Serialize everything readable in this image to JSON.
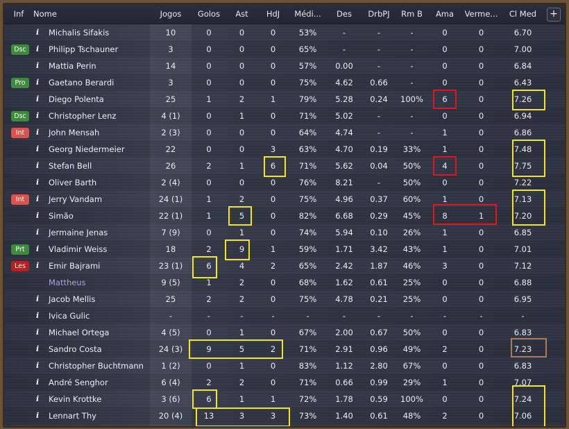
{
  "columns": [
    {
      "key": "inf",
      "label": "Inf"
    },
    {
      "key": "nome",
      "label": "Nome"
    },
    {
      "key": "jogos",
      "label": "Jogos"
    },
    {
      "key": "golos",
      "label": "Golos"
    },
    {
      "key": "ast",
      "label": "Ast"
    },
    {
      "key": "hdj",
      "label": "HdJ"
    },
    {
      "key": "media",
      "label": "Médi..."
    },
    {
      "key": "des",
      "label": "Des"
    },
    {
      "key": "drbpj",
      "label": "DrbPJ"
    },
    {
      "key": "rmb",
      "label": "Rm B"
    },
    {
      "key": "ama",
      "label": "Ama"
    },
    {
      "key": "verm",
      "label": "Verme..."
    },
    {
      "key": "clmed",
      "label": "Cl Med"
    }
  ],
  "add_column_label": "+",
  "badge_colors": {
    "Dsc": "#3f8a3f",
    "Pro": "#3f8a3f",
    "Prt": "#3f8a3f",
    "Int": "#d9534f",
    "Les": "#b3231f"
  },
  "players": [
    {
      "badge": "",
      "info": "i",
      "name": "Michalis Sifakis",
      "jogos": "10",
      "golos": "0",
      "ast": "0",
      "hdj": "0",
      "media": "53%",
      "des": "-",
      "drbpj": "-",
      "rmb": "-",
      "ama": "0",
      "verm": "0",
      "clmed": "6.70"
    },
    {
      "badge": "Dsc",
      "info": "i",
      "name": "Philipp Tschauner",
      "jogos": "3",
      "golos": "0",
      "ast": "0",
      "hdj": "0",
      "media": "65%",
      "des": "-",
      "drbpj": "-",
      "rmb": "-",
      "ama": "0",
      "verm": "0",
      "clmed": "7.00"
    },
    {
      "badge": "",
      "info": "i",
      "name": "Mattia Perin",
      "jogos": "14",
      "golos": "0",
      "ast": "0",
      "hdj": "0",
      "media": "57%",
      "des": "0.00",
      "drbpj": "-",
      "rmb": "-",
      "ama": "0",
      "verm": "0",
      "clmed": "6.84"
    },
    {
      "badge": "Pro",
      "info": "i",
      "name": "Gaetano Berardi",
      "jogos": "3",
      "golos": "0",
      "ast": "0",
      "hdj": "0",
      "media": "75%",
      "des": "4.62",
      "drbpj": "0.66",
      "rmb": "-",
      "ama": "0",
      "verm": "0",
      "clmed": "6.43"
    },
    {
      "badge": "",
      "info": "i",
      "name": "Diego Polenta",
      "jogos": "25",
      "golos": "1",
      "ast": "2",
      "hdj": "1",
      "media": "79%",
      "des": "5.28",
      "drbpj": "0.24",
      "rmb": "100%",
      "ama": "6",
      "verm": "0",
      "clmed": "7.26"
    },
    {
      "badge": "Dsc",
      "info": "i",
      "name": "Christopher Lenz",
      "jogos": "4 (1)",
      "golos": "0",
      "ast": "1",
      "hdj": "0",
      "media": "71%",
      "des": "5.02",
      "drbpj": "-",
      "rmb": "-",
      "ama": "0",
      "verm": "0",
      "clmed": "6.94"
    },
    {
      "badge": "Int",
      "info": "i",
      "name": "John Mensah",
      "jogos": "2 (3)",
      "golos": "0",
      "ast": "0",
      "hdj": "0",
      "media": "64%",
      "des": "4.74",
      "drbpj": "-",
      "rmb": "-",
      "ama": "1",
      "verm": "0",
      "clmed": "6.86"
    },
    {
      "badge": "",
      "info": "i",
      "name": "Georg Niedermeier",
      "jogos": "22",
      "golos": "0",
      "ast": "0",
      "hdj": "3",
      "media": "63%",
      "des": "4.70",
      "drbpj": "0.19",
      "rmb": "33%",
      "ama": "1",
      "verm": "0",
      "clmed": "7.48"
    },
    {
      "badge": "",
      "info": "i",
      "name": "Stefan Bell",
      "jogos": "26",
      "golos": "2",
      "ast": "1",
      "hdj": "6",
      "media": "71%",
      "des": "5.62",
      "drbpj": "0.04",
      "rmb": "50%",
      "ama": "4",
      "verm": "0",
      "clmed": "7.75"
    },
    {
      "badge": "",
      "info": "i",
      "name": "Oliver Barth",
      "jogos": "2 (4)",
      "golos": "0",
      "ast": "0",
      "hdj": "0",
      "media": "76%",
      "des": "8.21",
      "drbpj": "-",
      "rmb": "50%",
      "ama": "0",
      "verm": "0",
      "clmed": "7.22"
    },
    {
      "badge": "Int",
      "info": "i",
      "name": "Jerry Vandam",
      "jogos": "24 (1)",
      "golos": "1",
      "ast": "2",
      "hdj": "0",
      "media": "75%",
      "des": "4.96",
      "drbpj": "0.37",
      "rmb": "60%",
      "ama": "1",
      "verm": "0",
      "clmed": "7.13"
    },
    {
      "badge": "",
      "info": "i",
      "name": "Simão",
      "jogos": "22 (1)",
      "golos": "1",
      "ast": "5",
      "hdj": "0",
      "media": "82%",
      "des": "6.68",
      "drbpj": "0.29",
      "rmb": "45%",
      "ama": "8",
      "verm": "1",
      "clmed": "7.20"
    },
    {
      "badge": "",
      "info": "i",
      "name": "Jermaine Jenas",
      "jogos": "7 (9)",
      "golos": "0",
      "ast": "1",
      "hdj": "0",
      "media": "74%",
      "des": "5.94",
      "drbpj": "0.10",
      "rmb": "26%",
      "ama": "1",
      "verm": "0",
      "clmed": "6.85"
    },
    {
      "badge": "Prt",
      "info": "i",
      "name": "Vladimir Weiss",
      "jogos": "18",
      "golos": "2",
      "ast": "9",
      "hdj": "1",
      "media": "59%",
      "des": "1.71",
      "drbpj": "3.42",
      "rmb": "43%",
      "ama": "1",
      "verm": "0",
      "clmed": "7.01"
    },
    {
      "badge": "Les",
      "info": "i",
      "name": "Emir Bajrami",
      "jogos": "23 (1)",
      "golos": "6",
      "ast": "4",
      "hdj": "2",
      "media": "65%",
      "des": "2.42",
      "drbpj": "1.87",
      "rmb": "46%",
      "ama": "3",
      "verm": "0",
      "clmed": "7.12"
    },
    {
      "badge": "",
      "info": "",
      "name": "Mattheus",
      "link": true,
      "jogos": "9 (5)",
      "golos": "1",
      "ast": "2",
      "hdj": "0",
      "media": "68%",
      "des": "1.62",
      "drbpj": "0.61",
      "rmb": "25%",
      "ama": "0",
      "verm": "0",
      "clmed": "6.88"
    },
    {
      "badge": "",
      "info": "i",
      "name": "Jacob Mellis",
      "jogos": "25",
      "golos": "2",
      "ast": "2",
      "hdj": "0",
      "media": "75%",
      "des": "4.78",
      "drbpj": "0.21",
      "rmb": "25%",
      "ama": "0",
      "verm": "0",
      "clmed": "6.95"
    },
    {
      "badge": "",
      "info": "i",
      "name": "Ivica Gulic",
      "jogos": "-",
      "golos": "-",
      "ast": "-",
      "hdj": "-",
      "media": "-",
      "des": "-",
      "drbpj": "-",
      "rmb": "-",
      "ama": "-",
      "verm": "-",
      "clmed": "-"
    },
    {
      "badge": "",
      "info": "i",
      "name": "Michael Ortega",
      "jogos": "4 (5)",
      "golos": "0",
      "ast": "1",
      "hdj": "0",
      "media": "67%",
      "des": "2.00",
      "drbpj": "0.67",
      "rmb": "50%",
      "ama": "0",
      "verm": "0",
      "clmed": "6.83"
    },
    {
      "badge": "",
      "info": "i",
      "name": "Sandro Costa",
      "jogos": "24 (3)",
      "golos": "9",
      "ast": "5",
      "hdj": "2",
      "media": "71%",
      "des": "2.91",
      "drbpj": "0.96",
      "rmb": "49%",
      "ama": "2",
      "verm": "0",
      "clmed": "7.23"
    },
    {
      "badge": "",
      "info": "i",
      "name": "Christopher Buchtmann",
      "jogos": "1 (2)",
      "golos": "0",
      "ast": "1",
      "hdj": "0",
      "media": "83%",
      "des": "1.12",
      "drbpj": "2.80",
      "rmb": "67%",
      "ama": "0",
      "verm": "0",
      "clmed": "6.83"
    },
    {
      "badge": "",
      "info": "i",
      "name": "André Senghor",
      "jogos": "6 (4)",
      "golos": "2",
      "ast": "2",
      "hdj": "0",
      "media": "71%",
      "des": "0.66",
      "drbpj": "0.99",
      "rmb": "29%",
      "ama": "1",
      "verm": "0",
      "clmed": "7.07"
    },
    {
      "badge": "",
      "info": "i",
      "name": "Kevin Krottke",
      "jogos": "3 (6)",
      "golos": "6",
      "ast": "1",
      "hdj": "1",
      "media": "72%",
      "des": "1.78",
      "drbpj": "0.59",
      "rmb": "100%",
      "ama": "0",
      "verm": "0",
      "clmed": "7.24"
    },
    {
      "badge": "",
      "info": "i",
      "name": "Lennart Thy",
      "jogos": "20 (4)",
      "golos": "13",
      "ast": "3",
      "hdj": "3",
      "media": "73%",
      "des": "1.40",
      "drbpj": "0.61",
      "rmb": "48%",
      "ama": "2",
      "verm": "0",
      "clmed": "7.06"
    }
  ],
  "highlight_colors": {
    "yellow": "#f4e61b",
    "red": "#e0181e",
    "brown": "#b0795a"
  }
}
